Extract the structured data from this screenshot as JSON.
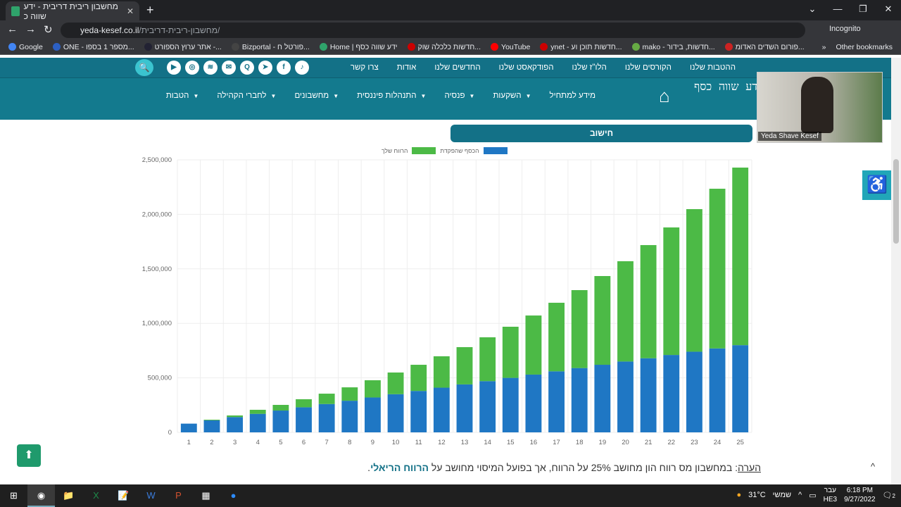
{
  "browser": {
    "tab_title": "מחשבון ריבית דריבית - ידע שווה כ",
    "url_host": "yeda-kesef.co.il",
    "url_path": "/מחשבון-ריבית-דריבית/",
    "incognito": "Incognito",
    "bookmarks": [
      "Google",
      "ONE - מספר 1 בספו...",
      "אתר ערוץ הספורט -...",
      "Bizportal - פורטל ח...",
      "Home | ידע שווה כסף",
      "חדשות כלכלה שוק...",
      "YouTube",
      "ynet - חדשות תוכן וע...",
      "mako - חדשות, בידור...",
      "פורום השדים האדומ..."
    ],
    "other_bookmarks": "Other bookmarks"
  },
  "site": {
    "top_menu": [
      "ההטבות שלנו",
      "הקורסים שלנו",
      "הלו\"ז שלנו",
      "הפודקאסט שלנו",
      "החדשים שלנו",
      "אודות",
      "צרו קשר"
    ],
    "social": [
      "tiktok",
      "facebook",
      "telegram",
      "quora",
      "email",
      "spotify",
      "instagram",
      "youtube"
    ],
    "main_menu": [
      {
        "label": "מידע למתחיל",
        "dropdown": false
      },
      {
        "label": "השקעות",
        "dropdown": true
      },
      {
        "label": "פנסיה",
        "dropdown": true
      },
      {
        "label": "התנהלות פיננסית",
        "dropdown": true
      },
      {
        "label": "מחשבונים",
        "dropdown": true
      },
      {
        "label": "לחברי הקהילה",
        "dropdown": true
      },
      {
        "label": "הטבות",
        "dropdown": true
      }
    ],
    "logo_text": "ידע שווה כסף",
    "video_name": "Yeda Shave Kesef"
  },
  "calc_header": "חישוב",
  "chart_data": {
    "type": "bar",
    "stacked": true,
    "categories": [
      "1",
      "2",
      "3",
      "4",
      "5",
      "6",
      "7",
      "8",
      "9",
      "10",
      "11",
      "12",
      "13",
      "14",
      "15",
      "16",
      "17",
      "18",
      "19",
      "20",
      "21",
      "22",
      "23",
      "24",
      "25"
    ],
    "series": [
      {
        "name": "הכסף שהפקדת",
        "color": "#1f77c4",
        "values": [
          80000,
          110000,
          140000,
          170000,
          200000,
          230000,
          260000,
          290000,
          320000,
          350000,
          380000,
          410000,
          440000,
          470000,
          500000,
          530000,
          560000,
          590000,
          620000,
          650000,
          680000,
          710000,
          740000,
          770000,
          800000
        ]
      },
      {
        "name": "הרווח שלך",
        "color": "#4cba46",
        "values": [
          0,
          6000,
          15000,
          37000,
          52000,
          74000,
          95000,
          123000,
          158000,
          199000,
          240000,
          288000,
          342000,
          402000,
          469000,
          542000,
          629000,
          715000,
          814000,
          920000,
          1038000,
          1170000,
          1308000,
          1465000,
          1629000
        ]
      }
    ],
    "ylim": [
      0,
      2500000
    ],
    "yticks": [
      "0",
      "500,000",
      "1,000,000",
      "1,500,000",
      "2,000,000",
      "2,500,000"
    ],
    "ytick_values": [
      0,
      500000,
      1000000,
      1500000,
      2000000,
      2500000
    ],
    "grid": true,
    "legend": "top-center"
  },
  "note": {
    "label": "הערה",
    "text": ": במחשבון מס רווח הון מחושב 25% על הרווח, אך בפועל המיסוי מחושב על ",
    "bold": "הרווח הריאלי",
    "end": "."
  },
  "taskbar": {
    "weather": "31°C",
    "weather_label": "שמשי",
    "lang": "עבר",
    "lang2": "HE3",
    "time": "6:18 PM",
    "date": "9/27/2022",
    "notif": "2"
  }
}
